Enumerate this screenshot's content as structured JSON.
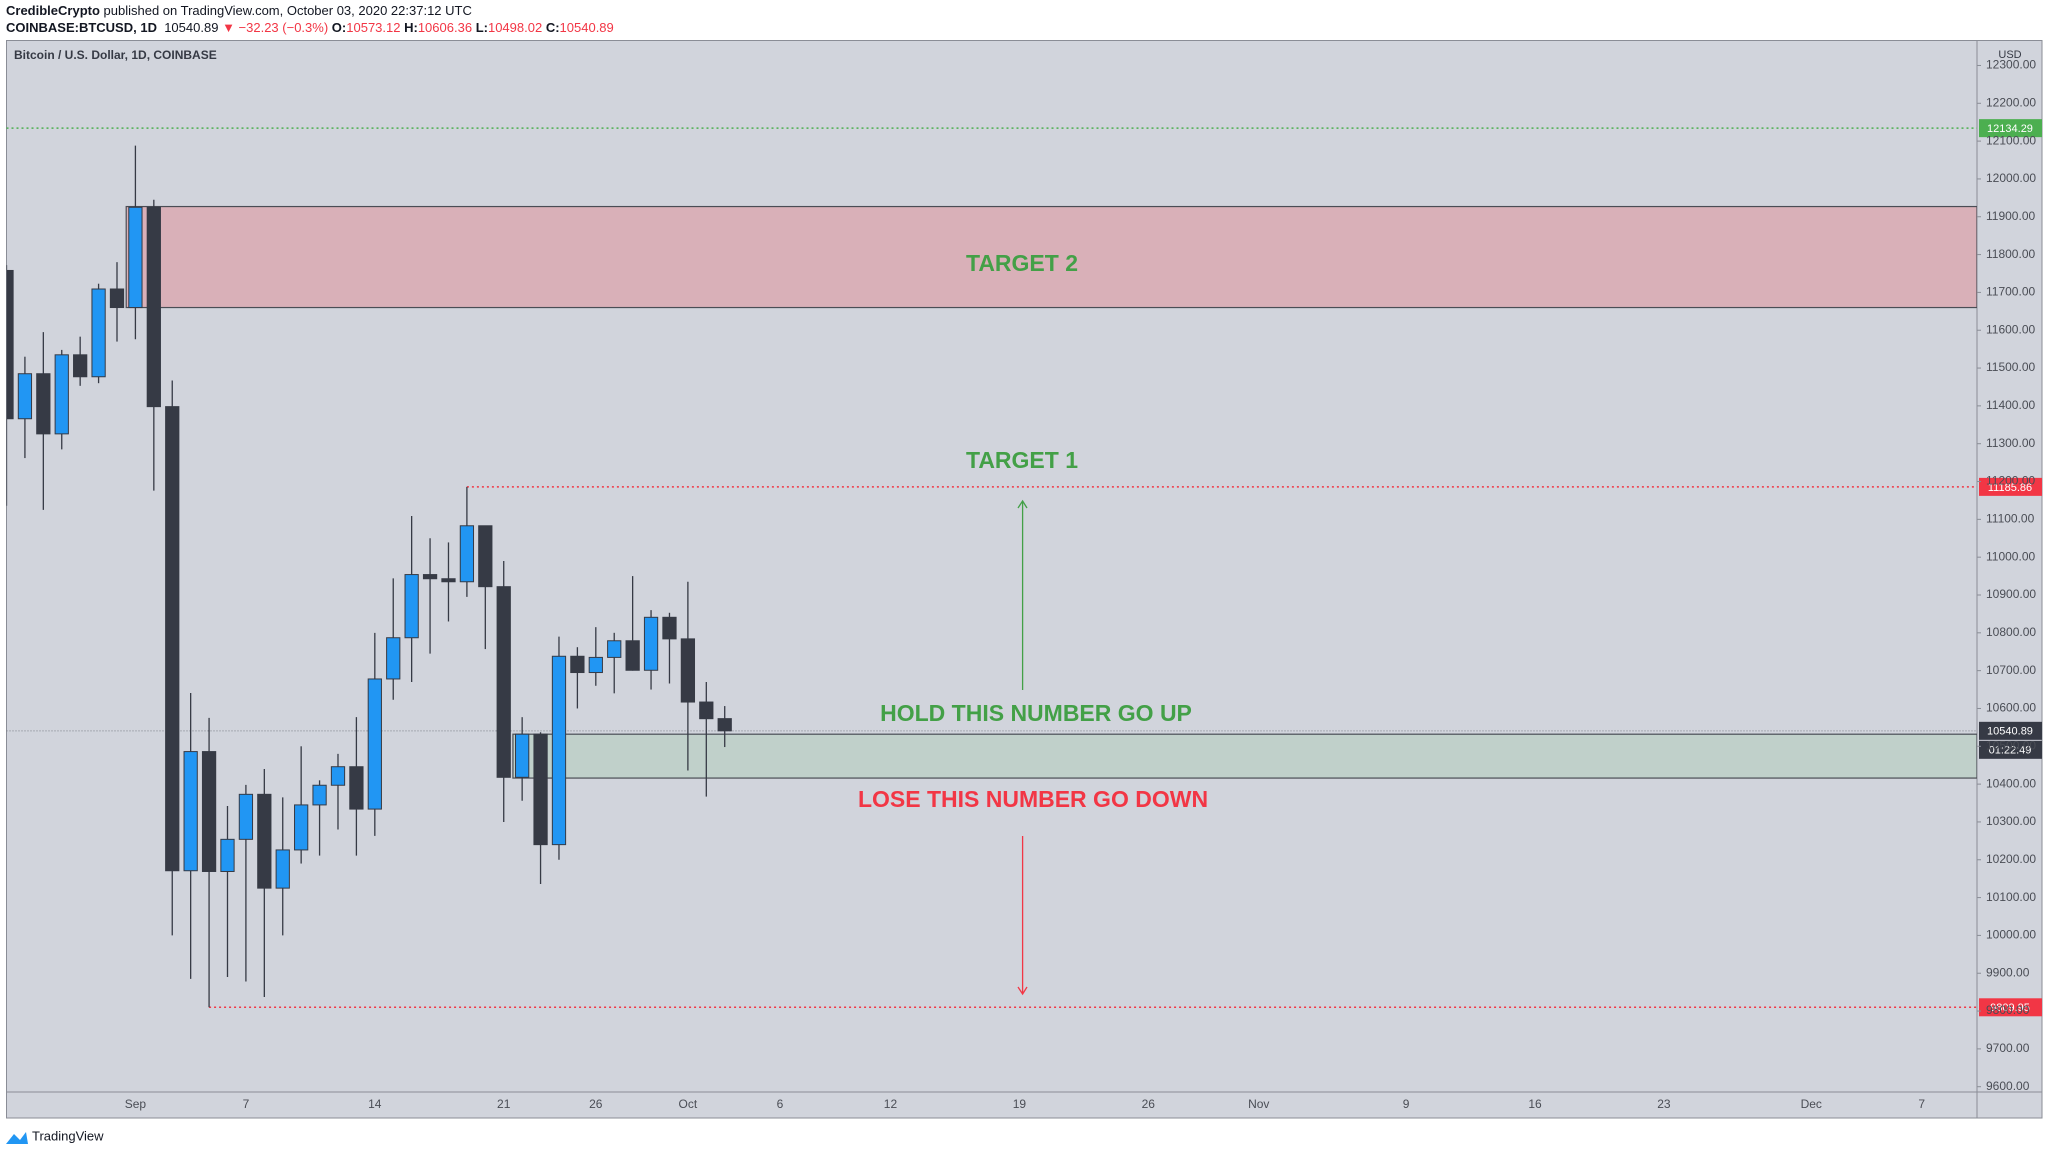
{
  "header": {
    "author": "CredibleCrypto",
    "published": "published on TradingView.com, October 03, 2020 22:37:12 UTC",
    "symbol": "COINBASE:BTCUSD, 1D",
    "last": "10540.89",
    "change": "▼ −32.23 (−0.3%)",
    "ohlc": [
      {
        "label": "O:",
        "value": "10573.12"
      },
      {
        "label": "H:",
        "value": "10606.36"
      },
      {
        "label": "L:",
        "value": "10498.02"
      },
      {
        "label": "C:",
        "value": "10540.89"
      }
    ]
  },
  "chart_data": {
    "type": "candlestick",
    "title": "Bitcoin / U.S. Dollar, 1D, COINBASE",
    "currency": "USD",
    "countdown": "01:22:49",
    "up_color": "#2196f3",
    "down_color": "#363a45",
    "grid": false,
    "x": [
      "2020-08-25",
      "2020-08-26",
      "2020-08-27",
      "2020-08-28",
      "2020-08-29",
      "2020-08-30",
      "2020-08-31",
      "2020-09-01",
      "2020-09-02",
      "2020-09-03",
      "2020-09-04",
      "2020-09-05",
      "2020-09-06",
      "2020-09-07",
      "2020-09-08",
      "2020-09-09",
      "2020-09-10",
      "2020-09-11",
      "2020-09-12",
      "2020-09-13",
      "2020-09-14",
      "2020-09-15",
      "2020-09-16",
      "2020-09-17",
      "2020-09-18",
      "2020-09-19",
      "2020-09-20",
      "2020-09-21",
      "2020-09-22",
      "2020-09-23",
      "2020-09-24",
      "2020-09-25",
      "2020-09-26",
      "2020-09-27",
      "2020-09-28",
      "2020-09-29",
      "2020-09-30",
      "2020-10-01",
      "2020-10-02",
      "2020-10-03"
    ],
    "open": [
      11758,
      11366,
      11485,
      11326,
      11535,
      11477,
      11709,
      11660,
      11925,
      11398,
      10171,
      10486,
      10169,
      10254,
      10373,
      10125,
      10226,
      10345,
      10397,
      10446,
      10334,
      10678,
      10787,
      10954,
      10943,
      10935,
      11083,
      10922,
      10418,
      10532,
      10240,
      10738,
      10695,
      10735,
      10779,
      10701,
      10841,
      10784,
      10617,
      10573.12
    ],
    "high": [
      11772,
      11530,
      11595,
      11548,
      11583,
      11723,
      11780,
      12088,
      11945,
      11467,
      10641,
      10575,
      10342,
      10398,
      10440,
      10365,
      10500,
      10410,
      10480,
      10577,
      10800,
      10944,
      11109,
      11050,
      11039,
      11185.86,
      11083,
      10990,
      10577,
      10537,
      10790,
      10762,
      10815,
      10800,
      10950,
      10860,
      10853,
      10935,
      10670,
      10606.36
    ],
    "low": [
      11136,
      11262,
      11125,
      11285,
      11453,
      11460,
      11570,
      11576,
      11176,
      10000,
      9885,
      9809.95,
      9890,
      9878,
      9837,
      10000,
      10190,
      10211,
      10280,
      10211,
      10263,
      10623,
      10670,
      10745,
      10830,
      10895,
      10757,
      10300,
      10356,
      10136,
      10200,
      10600,
      10660,
      10640,
      10700,
      10650,
      10666,
      10436,
      10367,
      10498.02
    ],
    "close": [
      11366,
      11485,
      11326,
      11535,
      11477,
      11709,
      11660,
      11925,
      11398,
      10171,
      10486,
      10169,
      10254,
      10373,
      10125,
      10226,
      10345,
      10397,
      10446,
      10334,
      10678,
      10787,
      10954,
      10943,
      10935,
      11083,
      10922,
      10418,
      10532,
      10240,
      10738,
      10695,
      10735,
      10779,
      10701,
      10841,
      10784,
      10617,
      10573,
      10540.89
    ],
    "xlim": [
      "2020-08-25",
      "2020-12-10"
    ],
    "xticks": [
      {
        "value": "2020-09-01",
        "label": "Sep"
      },
      {
        "value": "2020-09-07",
        "label": "7"
      },
      {
        "value": "2020-09-14",
        "label": "14"
      },
      {
        "value": "2020-09-21",
        "label": "21"
      },
      {
        "value": "2020-09-26",
        "label": "26"
      },
      {
        "value": "2020-10-01",
        "label": "Oct"
      },
      {
        "value": "2020-10-06",
        "label": "6"
      },
      {
        "value": "2020-10-12",
        "label": "12"
      },
      {
        "value": "2020-10-19",
        "label": "19"
      },
      {
        "value": "2020-10-26",
        "label": "26"
      },
      {
        "value": "2020-11-01",
        "label": "Nov"
      },
      {
        "value": "2020-11-09",
        "label": "9"
      },
      {
        "value": "2020-11-16",
        "label": "16"
      },
      {
        "value": "2020-11-23",
        "label": "23"
      },
      {
        "value": "2020-12-01",
        "label": "Dec"
      },
      {
        "value": "2020-12-07",
        "label": "7"
      }
    ],
    "ylim": [
      9586,
      12366
    ],
    "yticks": [
      {
        "value": 9600,
        "label": "9600.00"
      },
      {
        "value": 9700,
        "label": "9700.00"
      },
      {
        "value": 9800,
        "label": "9800.00"
      },
      {
        "value": 9900,
        "label": "9900.00"
      },
      {
        "value": 10000,
        "label": "10000.00"
      },
      {
        "value": 10100,
        "label": "10100.00"
      },
      {
        "value": 10200,
        "label": "10200.00"
      },
      {
        "value": 10300,
        "label": "10300.00"
      },
      {
        "value": 10400,
        "label": "10400.00"
      },
      {
        "value": 10500,
        "label": "10500.00"
      },
      {
        "value": 10600,
        "label": "10600.00"
      },
      {
        "value": 10700,
        "label": "10700.00"
      },
      {
        "value": 10800,
        "label": "10800.00"
      },
      {
        "value": 10900,
        "label": "10900.00"
      },
      {
        "value": 11000,
        "label": "11000.00"
      },
      {
        "value": 11100,
        "label": "11100.00"
      },
      {
        "value": 11200,
        "label": "11200.00"
      },
      {
        "value": 11300,
        "label": "11300.00"
      },
      {
        "value": 11400,
        "label": "11400.00"
      },
      {
        "value": 11500,
        "label": "11500.00"
      },
      {
        "value": 11600,
        "label": "11600.00"
      },
      {
        "value": 11700,
        "label": "11700.00"
      },
      {
        "value": 11800,
        "label": "11800.00"
      },
      {
        "value": 11900,
        "label": "11900.00"
      },
      {
        "value": 12000,
        "label": "12000.00"
      },
      {
        "value": 12100,
        "label": "12100.00"
      },
      {
        "value": 12200,
        "label": "12200.00"
      },
      {
        "value": 12300,
        "label": "12300.00"
      }
    ],
    "zones": [
      {
        "top": 11927,
        "bottom": 11660,
        "from": "2020-09-01",
        "color": "#d9b0b8"
      },
      {
        "top": 10532,
        "bottom": 10416,
        "from": "2020-09-22",
        "color": "#c0d0ca"
      }
    ],
    "levels": [
      {
        "value": 12134.29,
        "color": "#4caf50",
        "from": "2020-08-25"
      },
      {
        "value": 11185.86,
        "color": "#f23645",
        "from": "2020-09-19"
      },
      {
        "value": 9809.95,
        "color": "#f23645",
        "from": "2020-09-05"
      },
      {
        "value": 10540.89,
        "color": "#363a45",
        "from": "2020-08-25"
      }
    ],
    "annotations": [
      {
        "text": "TARGET 2",
        "color": "#43a047"
      },
      {
        "text": "TARGET 1",
        "color": "#43a047"
      },
      {
        "text": "HOLD THIS NUMBER GO UP",
        "color": "#43a047"
      },
      {
        "text": "LOSE THIS NUMBER GO DOWN",
        "color": "#f23645"
      }
    ]
  },
  "footer": {
    "brand": "TradingView"
  }
}
